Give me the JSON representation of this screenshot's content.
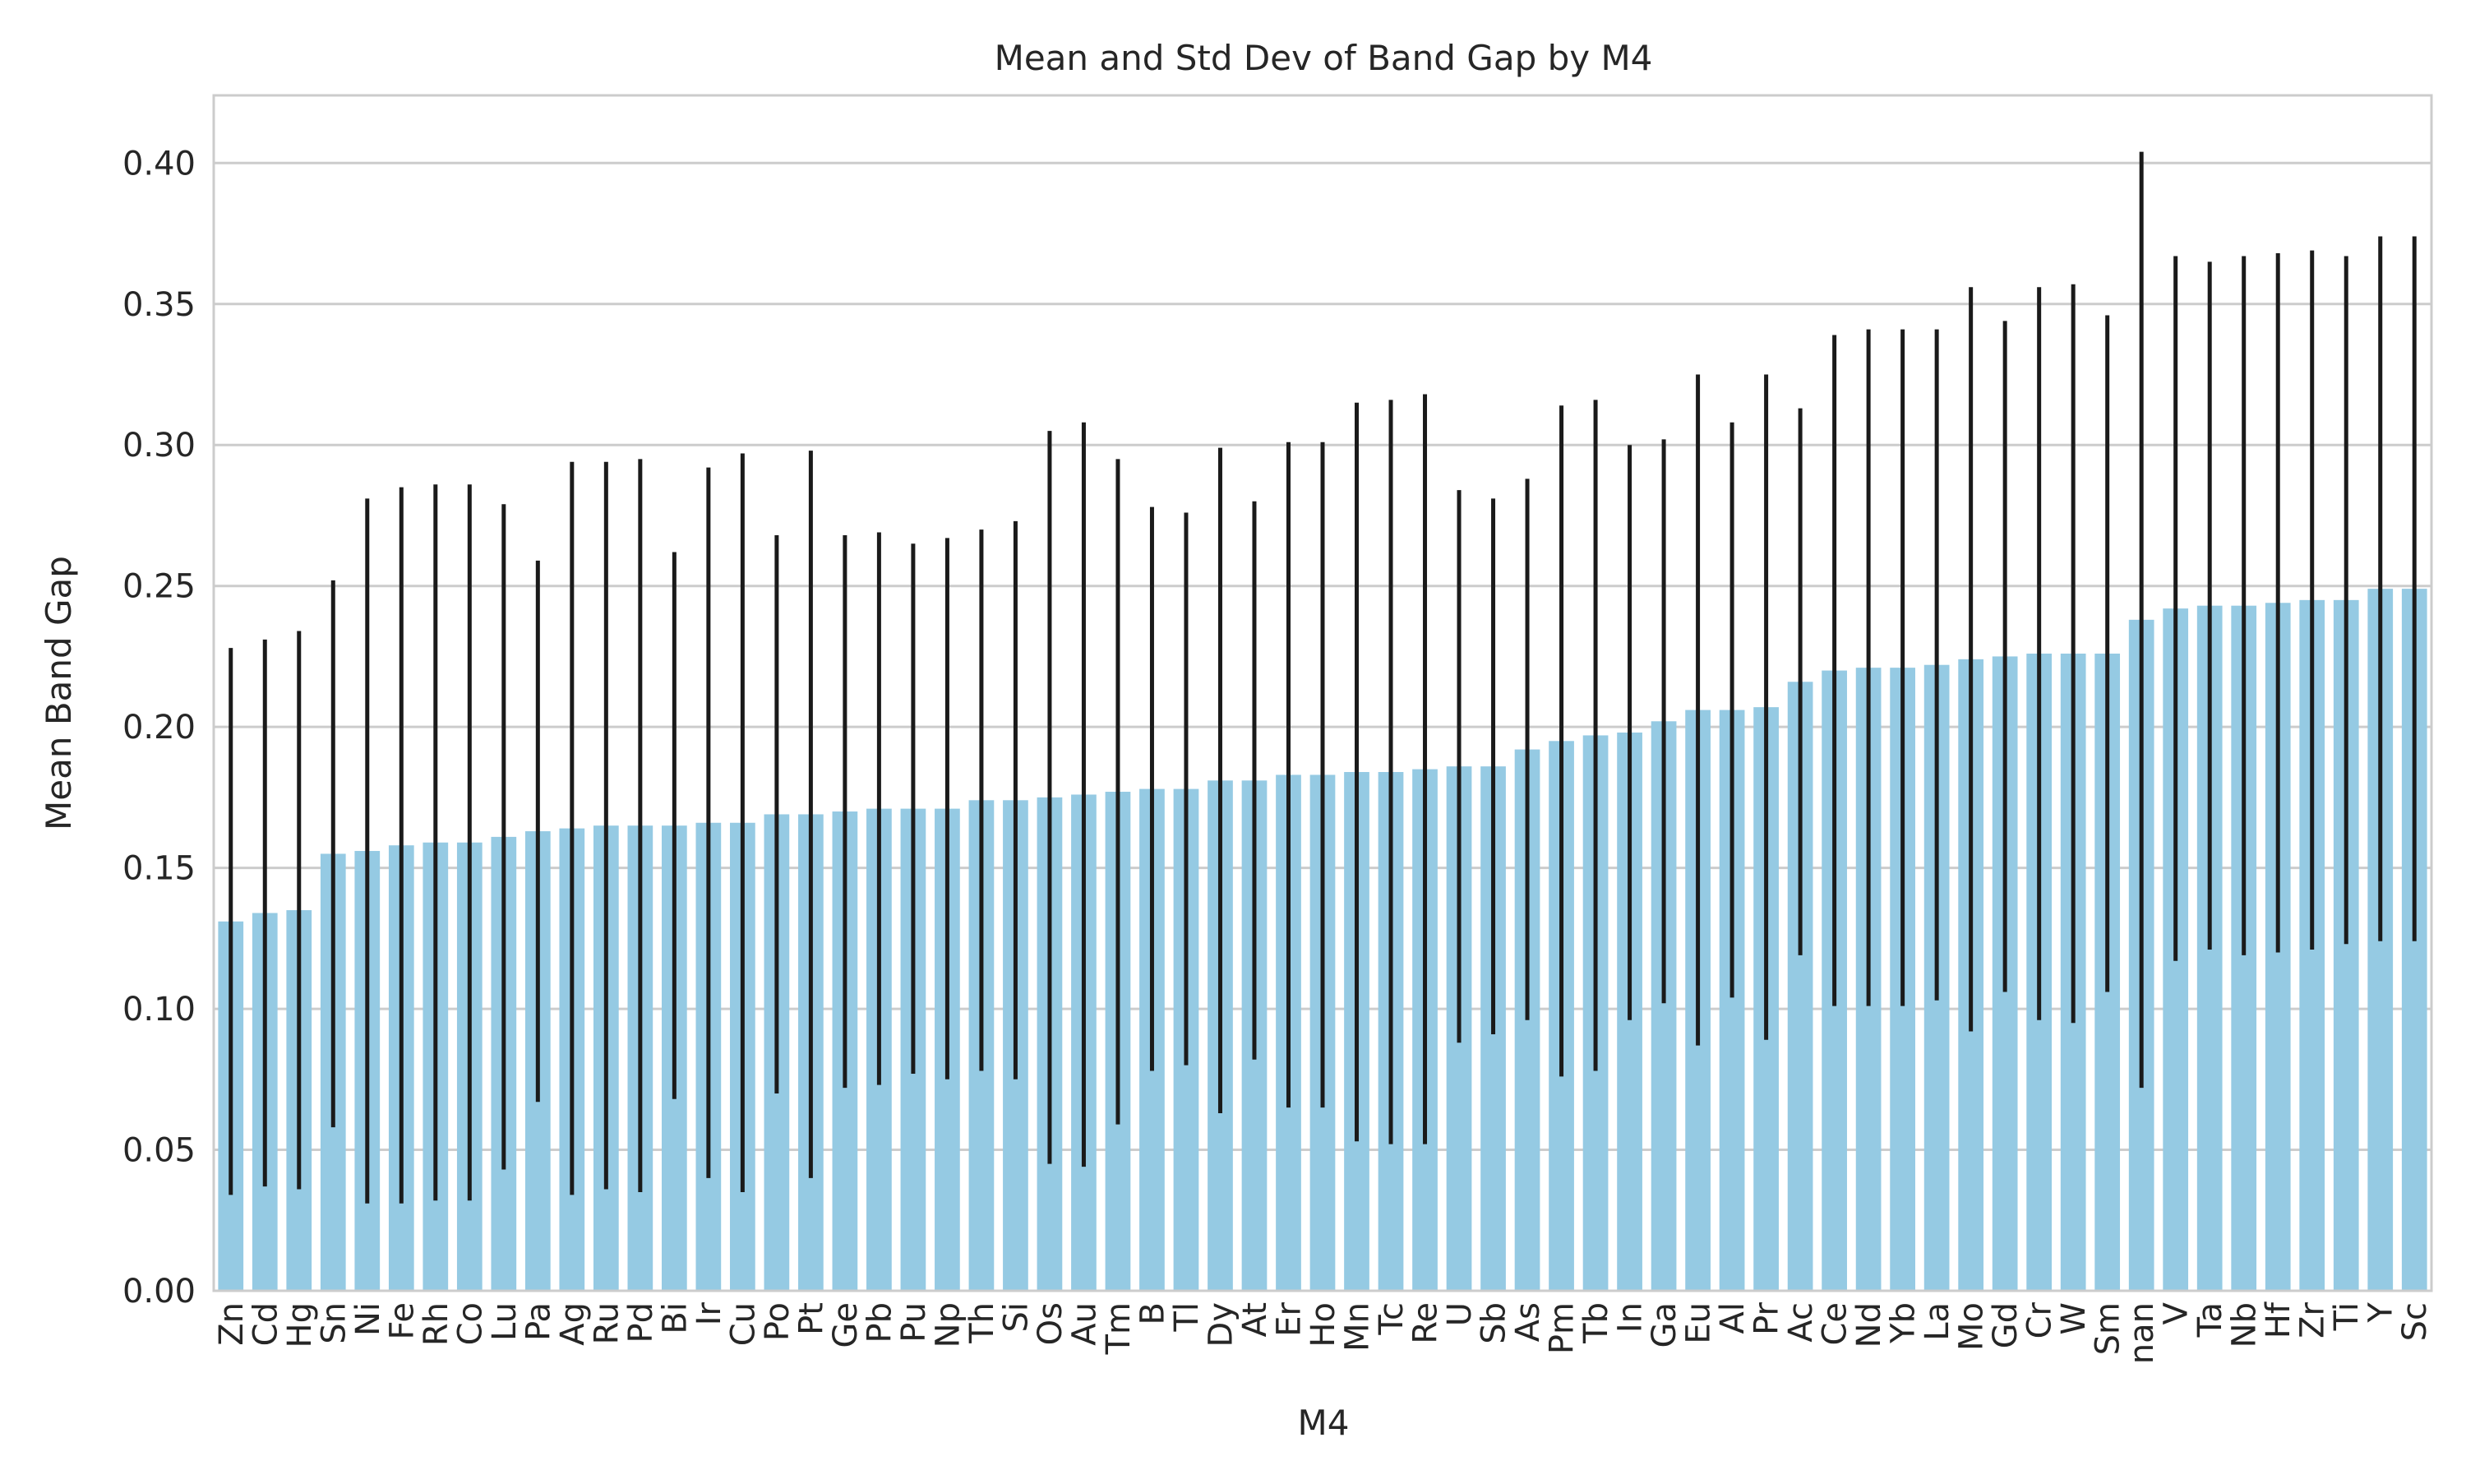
{
  "chart_data": {
    "type": "bar",
    "title": "Mean and Std Dev of Band Gap by M4",
    "xlabel": "M4",
    "ylabel": "Mean Band Gap",
    "ylim": [
      0,
      0.424
    ],
    "yticks": [
      "0.00",
      "0.05",
      "0.10",
      "0.15",
      "0.20",
      "0.25",
      "0.30",
      "0.35",
      "0.40"
    ],
    "grid": true,
    "bar_color": "#95cae3",
    "errorbar_color": "#1a1a1a",
    "categories": [
      "Zn",
      "Cd",
      "Hg",
      "Sn",
      "Ni",
      "Fe",
      "Rh",
      "Co",
      "Lu",
      "Pa",
      "Ag",
      "Ru",
      "Pd",
      "Bi",
      "Ir",
      "Cu",
      "Po",
      "Pt",
      "Ge",
      "Pb",
      "Pu",
      "Np",
      "Th",
      "Si",
      "Os",
      "Au",
      "Tm",
      "B",
      "Tl",
      "Dy",
      "At",
      "Er",
      "Ho",
      "Mn",
      "Tc",
      "Re",
      "U",
      "Sb",
      "As",
      "Pm",
      "Tb",
      "In",
      "Ga",
      "Eu",
      "Al",
      "Pr",
      "Ac",
      "Ce",
      "Nd",
      "Yb",
      "La",
      "Mo",
      "Gd",
      "Cr",
      "W",
      "Sm",
      "nan",
      "V",
      "Ta",
      "Nb",
      "Hf",
      "Zr",
      "Ti",
      "Y",
      "Sc"
    ],
    "values": [
      0.131,
      0.134,
      0.135,
      0.155,
      0.156,
      0.158,
      0.159,
      0.159,
      0.161,
      0.163,
      0.164,
      0.165,
      0.165,
      0.165,
      0.166,
      0.166,
      0.169,
      0.169,
      0.17,
      0.171,
      0.171,
      0.171,
      0.174,
      0.174,
      0.175,
      0.176,
      0.177,
      0.178,
      0.178,
      0.181,
      0.181,
      0.183,
      0.183,
      0.184,
      0.184,
      0.185,
      0.186,
      0.186,
      0.192,
      0.195,
      0.197,
      0.198,
      0.202,
      0.206,
      0.206,
      0.207,
      0.216,
      0.22,
      0.221,
      0.221,
      0.222,
      0.224,
      0.225,
      0.226,
      0.226,
      0.226,
      0.238,
      0.242,
      0.243,
      0.243,
      0.244,
      0.245,
      0.245,
      0.249,
      0.249
    ],
    "std": [
      0.097,
      0.097,
      0.099,
      0.097,
      0.125,
      0.127,
      0.127,
      0.127,
      0.118,
      0.096,
      0.13,
      0.129,
      0.13,
      0.097,
      0.126,
      0.131,
      0.099,
      0.129,
      0.098,
      0.098,
      0.094,
      0.096,
      0.096,
      0.099,
      0.13,
      0.132,
      0.118,
      0.1,
      0.098,
      0.118,
      0.099,
      0.118,
      0.118,
      0.131,
      0.132,
      0.133,
      0.098,
      0.095,
      0.096,
      0.119,
      0.119,
      0.102,
      0.1,
      0.119,
      0.102,
      0.118,
      0.097,
      0.119,
      0.12,
      0.12,
      0.119,
      0.132,
      0.119,
      0.13,
      0.131,
      0.12,
      0.166,
      0.125,
      0.122,
      0.124,
      0.124,
      0.124,
      0.122,
      0.125,
      0.125
    ]
  }
}
